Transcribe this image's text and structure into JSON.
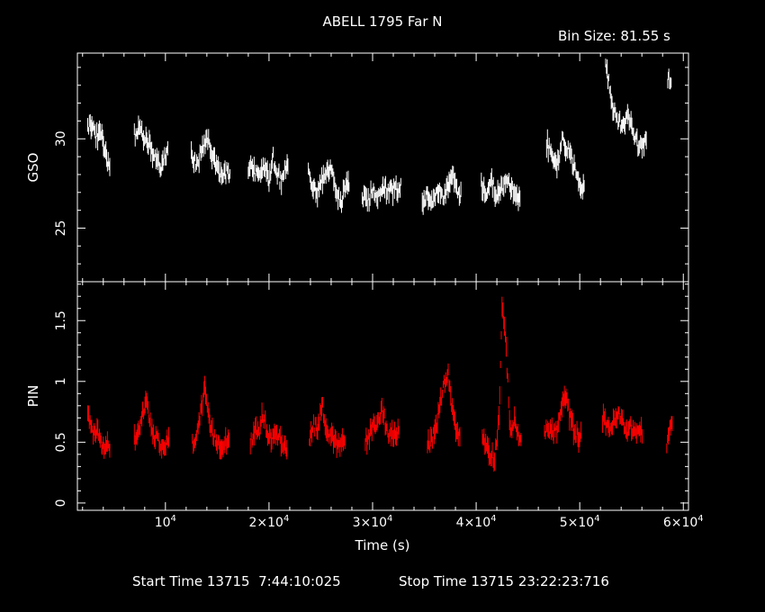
{
  "chart_data": [
    {
      "type": "line",
      "title": "ABELL 1795 Far N",
      "subtitle": "Bin Size: 81.55 s",
      "ylabel": "GSO",
      "xlim": [
        1500,
        60500
      ],
      "ylim": [
        22,
        34.8
      ],
      "y_ticks": [
        25,
        30
      ],
      "color": "#ffffff",
      "segments": [
        {
          "x": [
            2500,
            2900,
            3300,
            3700,
            4100,
            4400
          ],
          "y": [
            30.6,
            30.9,
            30.1,
            30.3,
            29.6,
            28.8
          ]
        },
        {
          "x": [
            7000,
            7400,
            7800,
            8200,
            8600,
            9000,
            9500,
            10000
          ],
          "y": [
            30.2,
            30.5,
            30.1,
            29.8,
            29.5,
            28.9,
            28.4,
            29.1
          ]
        },
        {
          "x": [
            12500,
            13000,
            13500,
            14000,
            14500,
            15000,
            15500,
            16000
          ],
          "y": [
            29.1,
            28.6,
            29.3,
            30.0,
            29.2,
            28.3,
            27.9,
            28.1
          ]
        },
        {
          "x": [
            18000,
            18400,
            18800,
            19200,
            19600,
            20000,
            20400,
            20800,
            21200,
            21600
          ],
          "y": [
            28.3,
            28.6,
            27.9,
            28.2,
            28.5,
            27.7,
            28.9,
            28.0,
            27.6,
            28.4
          ]
        },
        {
          "x": [
            23800,
            24200,
            24600,
            25000,
            25500,
            26000,
            26500,
            27000,
            27500
          ],
          "y": [
            28.0,
            27.4,
            26.8,
            27.6,
            27.9,
            28.2,
            27.1,
            26.6,
            27.4
          ]
        },
        {
          "x": [
            29000,
            29500,
            30000,
            30500,
            31000,
            31500,
            32500
          ],
          "y": [
            26.9,
            26.4,
            27.2,
            26.8,
            27.5,
            27.0,
            27.3
          ]
        },
        {
          "x": [
            34800,
            35300,
            35800,
            36300,
            36800,
            37300,
            37800,
            38300
          ],
          "y": [
            26.5,
            26.9,
            26.2,
            27.1,
            26.8,
            27.4,
            27.9,
            26.9
          ]
        },
        {
          "x": [
            40500,
            41000,
            41500,
            42000,
            42500,
            43000,
            43500,
            44000
          ],
          "y": [
            27.4,
            27.0,
            27.6,
            26.8,
            27.3,
            27.5,
            27.1,
            26.6
          ]
        },
        {
          "x": [
            46800,
            47300,
            47800,
            48300,
            48800,
            49300,
            49800,
            50200
          ],
          "y": [
            29.7,
            29.2,
            28.6,
            29.9,
            29.5,
            28.7,
            27.9,
            27.4
          ]
        },
        {
          "x": [
            52500,
            52800,
            53200,
            53700,
            54200,
            54700,
            55200,
            55700,
            56200
          ],
          "y": [
            34.1,
            33.1,
            31.6,
            31.0,
            30.7,
            31.2,
            30.3,
            29.6,
            29.9
          ]
        },
        {
          "x": [
            58500,
            58600
          ],
          "y": [
            32.9,
            33.4
          ]
        }
      ]
    },
    {
      "type": "line",
      "ylabel": "PIN",
      "xlabel": "Time (s)",
      "xlim": [
        1500,
        60500
      ],
      "ylim": [
        -0.06,
        1.82
      ],
      "y_ticks": [
        0,
        0.5,
        1,
        1.5
      ],
      "x_ticks": [
        10000,
        20000,
        30000,
        40000,
        50000,
        60000
      ],
      "x_tick_labels": [
        {
          "base": "10",
          "exp": "4"
        },
        {
          "base": "2×10",
          "exp": "4"
        },
        {
          "base": "3×10",
          "exp": "4"
        },
        {
          "base": "4×10",
          "exp": "4"
        },
        {
          "base": "5×10",
          "exp": "4"
        },
        {
          "base": "6×10",
          "exp": "4"
        }
      ],
      "color": "#ff0000",
      "segments": [
        {
          "x": [
            2500,
            2800,
            3100,
            3400,
            3700,
            4000,
            4400
          ],
          "y": [
            0.72,
            0.62,
            0.55,
            0.6,
            0.5,
            0.45,
            0.48
          ]
        },
        {
          "x": [
            7000,
            7400,
            7800,
            8100,
            8400,
            8700,
            9000,
            9400,
            9800,
            10100
          ],
          "y": [
            0.52,
            0.64,
            0.72,
            0.86,
            0.74,
            0.6,
            0.55,
            0.48,
            0.42,
            0.5
          ]
        },
        {
          "x": [
            12600,
            13000,
            13400,
            13800,
            14200,
            14600,
            15000,
            15400,
            15900
          ],
          "y": [
            0.48,
            0.58,
            0.72,
            0.92,
            0.66,
            0.55,
            0.5,
            0.48,
            0.52
          ]
        },
        {
          "x": [
            18200,
            18600,
            19000,
            19400,
            19800,
            20200,
            20600,
            21000,
            21500
          ],
          "y": [
            0.5,
            0.6,
            0.55,
            0.73,
            0.58,
            0.5,
            0.62,
            0.52,
            0.45
          ]
        },
        {
          "x": [
            23900,
            24300,
            24700,
            25100,
            25500,
            25900,
            26300,
            26700,
            27100
          ],
          "y": [
            0.55,
            0.65,
            0.6,
            0.83,
            0.62,
            0.55,
            0.5,
            0.45,
            0.52
          ]
        },
        {
          "x": [
            29300,
            29700,
            30100,
            30500,
            30900,
            31300,
            31800,
            32300
          ],
          "y": [
            0.5,
            0.56,
            0.62,
            0.65,
            0.8,
            0.62,
            0.55,
            0.6
          ]
        },
        {
          "x": [
            35300,
            35700,
            36100,
            36500,
            36900,
            37300,
            37700,
            38200
          ],
          "y": [
            0.48,
            0.5,
            0.6,
            0.82,
            0.98,
            1.05,
            0.78,
            0.55
          ]
        },
        {
          "x": [
            40600,
            41000,
            41400,
            41800,
            42200,
            42500,
            42900,
            43300,
            43700,
            44100
          ],
          "y": [
            0.55,
            0.48,
            0.4,
            0.38,
            0.7,
            1.62,
            1.25,
            0.6,
            0.66,
            0.55
          ]
        },
        {
          "x": [
            46600,
            47000,
            47400,
            47800,
            48200,
            48600,
            49000,
            49400,
            49900
          ],
          "y": [
            0.55,
            0.62,
            0.58,
            0.6,
            0.75,
            0.9,
            0.72,
            0.6,
            0.55
          ]
        },
        {
          "x": [
            52200,
            52600,
            53000,
            53400,
            53800,
            54200,
            54600,
            55000,
            55400,
            55800
          ],
          "y": [
            0.7,
            0.65,
            0.62,
            0.68,
            0.72,
            0.65,
            0.6,
            0.62,
            0.58,
            0.6
          ]
        },
        {
          "x": [
            58400,
            58550,
            58700
          ],
          "y": [
            0.4,
            0.55,
            0.62
          ]
        }
      ]
    }
  ],
  "footer": {
    "start": "Start Time 13715  7:44:10:025",
    "stop": "Stop Time 13715 23:22:23:716"
  }
}
